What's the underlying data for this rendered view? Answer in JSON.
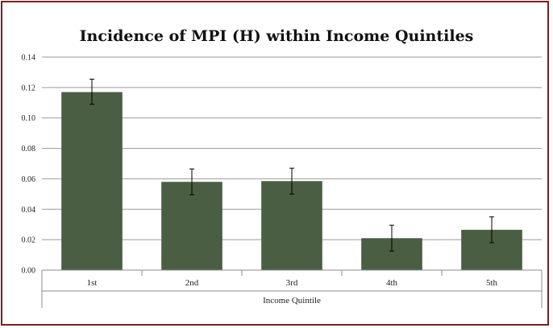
{
  "chart_data": {
    "type": "bar",
    "title": "Incidence of MPI (H) within Income Quintiles",
    "xlabel": "Income Quintile",
    "ylabel": "",
    "categories": [
      "1st",
      "2nd",
      "3rd",
      "4th",
      "5th"
    ],
    "values": [
      0.117,
      0.058,
      0.0585,
      0.021,
      0.0265
    ],
    "error_low": [
      0.109,
      0.0495,
      0.05,
      0.0125,
      0.018
    ],
    "error_high": [
      0.1255,
      0.0665,
      0.067,
      0.0295,
      0.035
    ],
    "ylim": [
      0,
      0.14
    ],
    "yticks": [
      "0.00",
      "0.02",
      "0.04",
      "0.06",
      "0.08",
      "0.10",
      "0.12",
      "0.14"
    ],
    "grid": true,
    "legend": "none",
    "colors": {
      "bar": "#4a5e44",
      "grid": "#9a9a9a",
      "frame": "#7a1f22"
    }
  }
}
